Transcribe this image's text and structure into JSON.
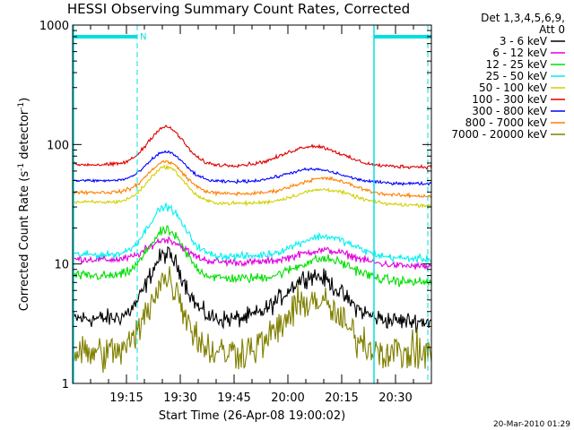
{
  "chart_data": {
    "type": "line",
    "title": "HESSI Observing Summary Count Rates, Corrected",
    "xlabel": "Start Time (26-Apr-08 19:00:02)",
    "ylabel_main": "Corrected Count Rate (s",
    "ylabel_sup1": "-1",
    "ylabel_mid": " detector",
    "ylabel_sup2": "-1",
    "ylabel_end": ")",
    "y_scale": "log",
    "ylim": [
      1,
      1000
    ],
    "xlim_minutes": [
      0,
      100
    ],
    "x_ticks": [
      {
        "label": "19:15",
        "minutes": 15
      },
      {
        "label": "19:30",
        "minutes": 30
      },
      {
        "label": "19:45",
        "minutes": 45
      },
      {
        "label": "20:00",
        "minutes": 60
      },
      {
        "label": "20:15",
        "minutes": 75
      },
      {
        "label": "20:30",
        "minutes": 90
      }
    ],
    "y_ticks": [
      {
        "label": "1",
        "value": 1
      },
      {
        "label": "10",
        "value": 10
      },
      {
        "label": "100",
        "value": 100
      },
      {
        "label": "1000",
        "value": 1000
      }
    ],
    "legend": {
      "placement": "right",
      "header": [
        "Det 1,3,4,5,6,9,",
        "Att 0"
      ]
    },
    "flags": {
      "night_intervals_minutes": [
        [
          0,
          18
        ],
        [
          84,
          100
        ]
      ],
      "saa_label": "N",
      "attenuator_markers_minutes": [
        18,
        84,
        99
      ],
      "color": "#00e0e0"
    },
    "series": [
      {
        "name": "3 - 6 keV",
        "color": "#000000",
        "profile": {
          "base_start": 3.5,
          "base_end": 3.3,
          "peak1": {
            "t": 26,
            "value": 12
          },
          "peak2": {
            "t": 67,
            "value": 8
          },
          "noise": 0.15
        }
      },
      {
        "name": "6 - 12 keV",
        "color": "#e000e0",
        "profile": {
          "base_start": 11,
          "base_end": 9.5,
          "peak1": {
            "t": 26,
            "value": 16
          },
          "peak2": {
            "t": 70,
            "value": 13
          },
          "noise": 0.06
        }
      },
      {
        "name": "12 - 25 keV",
        "color": "#00e000",
        "profile": {
          "base_start": 8,
          "base_end": 7,
          "peak1": {
            "t": 26,
            "value": 19
          },
          "peak2": {
            "t": 70,
            "value": 11
          },
          "noise": 0.08
        }
      },
      {
        "name": "25 - 50 keV",
        "color": "#00f0f0",
        "profile": {
          "base_start": 12,
          "base_end": 11,
          "peak1": {
            "t": 26,
            "value": 30
          },
          "peak2": {
            "t": 70,
            "value": 17
          },
          "noise": 0.06
        }
      },
      {
        "name": "50 - 100 keV",
        "color": "#d0d000",
        "profile": {
          "base_start": 33,
          "base_end": 31,
          "peak1": {
            "t": 26,
            "value": 65
          },
          "peak2": {
            "t": 70,
            "value": 42
          },
          "noise": 0.03
        }
      },
      {
        "name": "100 - 300 keV",
        "color": "#e00000",
        "profile": {
          "base_start": 68,
          "base_end": 65,
          "peak1": {
            "t": 26,
            "value": 140
          },
          "peak2": {
            "t": 67,
            "value": 97
          },
          "noise": 0.03
        }
      },
      {
        "name": "300 - 800 keV",
        "color": "#0000ff",
        "profile": {
          "base_start": 50,
          "base_end": 47,
          "peak1": {
            "t": 26,
            "value": 87
          },
          "peak2": {
            "t": 67,
            "value": 62
          },
          "noise": 0.025
        }
      },
      {
        "name": "800 - 7000 keV",
        "color": "#ff8000",
        "profile": {
          "base_start": 40,
          "base_end": 37,
          "peak1": {
            "t": 26,
            "value": 72
          },
          "peak2": {
            "t": 70,
            "value": 52
          },
          "noise": 0.03
        }
      },
      {
        "name": "7000 - 20000 keV",
        "color": "#808000",
        "profile": {
          "base_start": 1.8,
          "base_end": 1.8,
          "peak1": {
            "t": 26,
            "value": 7.5
          },
          "peak2": {
            "t": 67,
            "value": 5
          },
          "noise": 0.3
        }
      }
    ],
    "footer_timestamp": "20-Mar-2010 01:29"
  }
}
